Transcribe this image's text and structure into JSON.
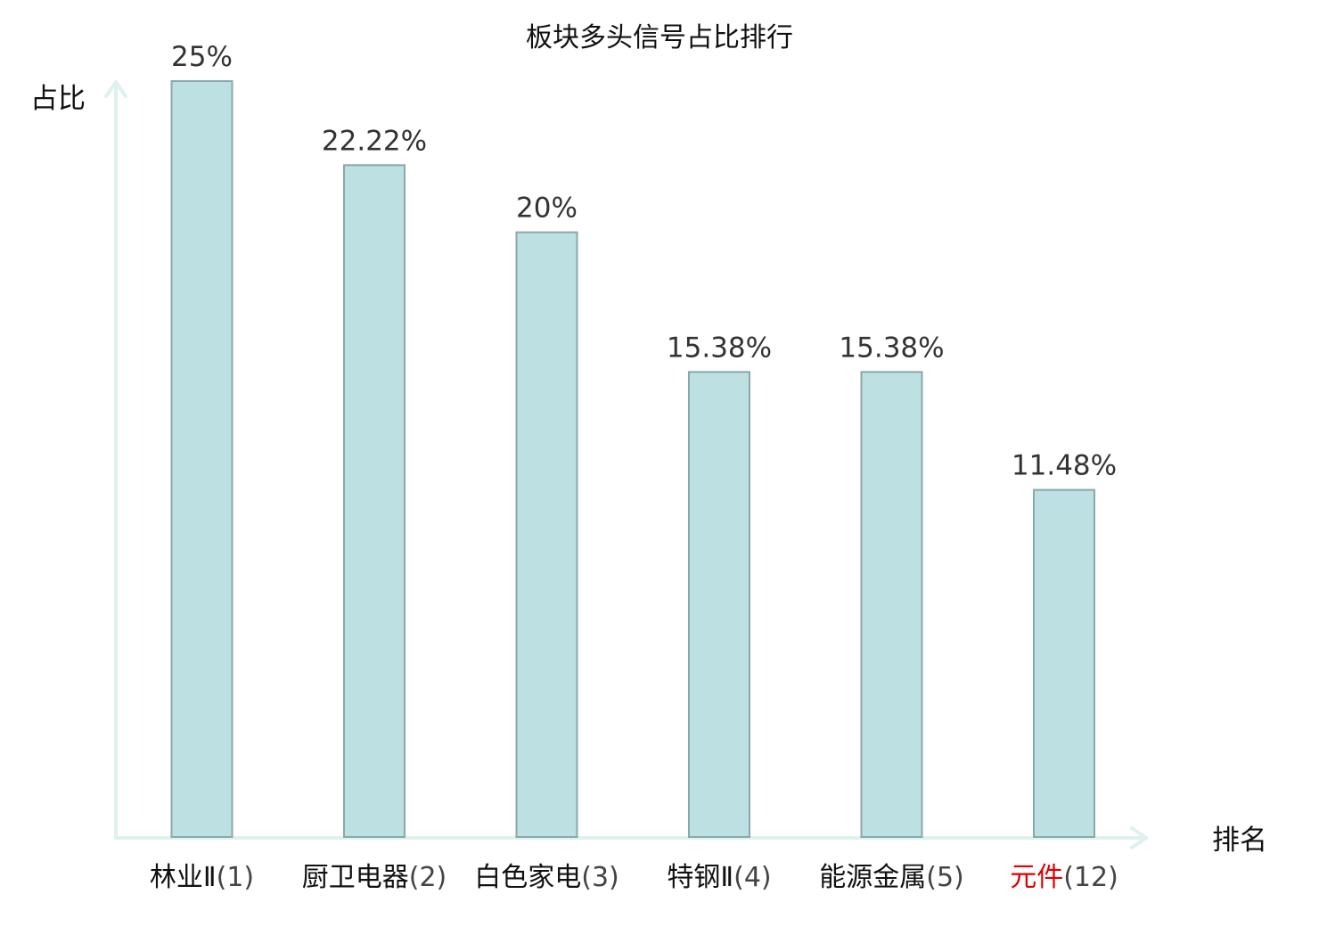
{
  "chart_data": {
    "type": "bar",
    "title": "板块多头信号占比排行",
    "xlabel": "排名",
    "ylabel": "占比",
    "ylim": [
      0,
      25
    ],
    "grid": false,
    "categories": [
      {
        "name": "林业Ⅱ",
        "rank": "(1)",
        "highlight": false
      },
      {
        "name": "厨卫电器",
        "rank": "(2)",
        "highlight": false
      },
      {
        "name": "白色家电",
        "rank": "(3)",
        "highlight": false
      },
      {
        "name": "特钢Ⅱ",
        "rank": "(4)",
        "highlight": false
      },
      {
        "name": "能源金属",
        "rank": "(5)",
        "highlight": false
      },
      {
        "name": "元件",
        "rank": "(12)",
        "highlight": true
      }
    ],
    "values": [
      25,
      22.22,
      20,
      15.38,
      15.38,
      11.48
    ],
    "value_labels": [
      "25%",
      "22.22%",
      "20%",
      "15.38%",
      "15.38%",
      "11.48%"
    ],
    "colors": {
      "bar_fill": "#bde0e2",
      "bar_stroke": "#8aa8aa",
      "axis": "#dff1ef",
      "highlight": "#e00000"
    }
  }
}
